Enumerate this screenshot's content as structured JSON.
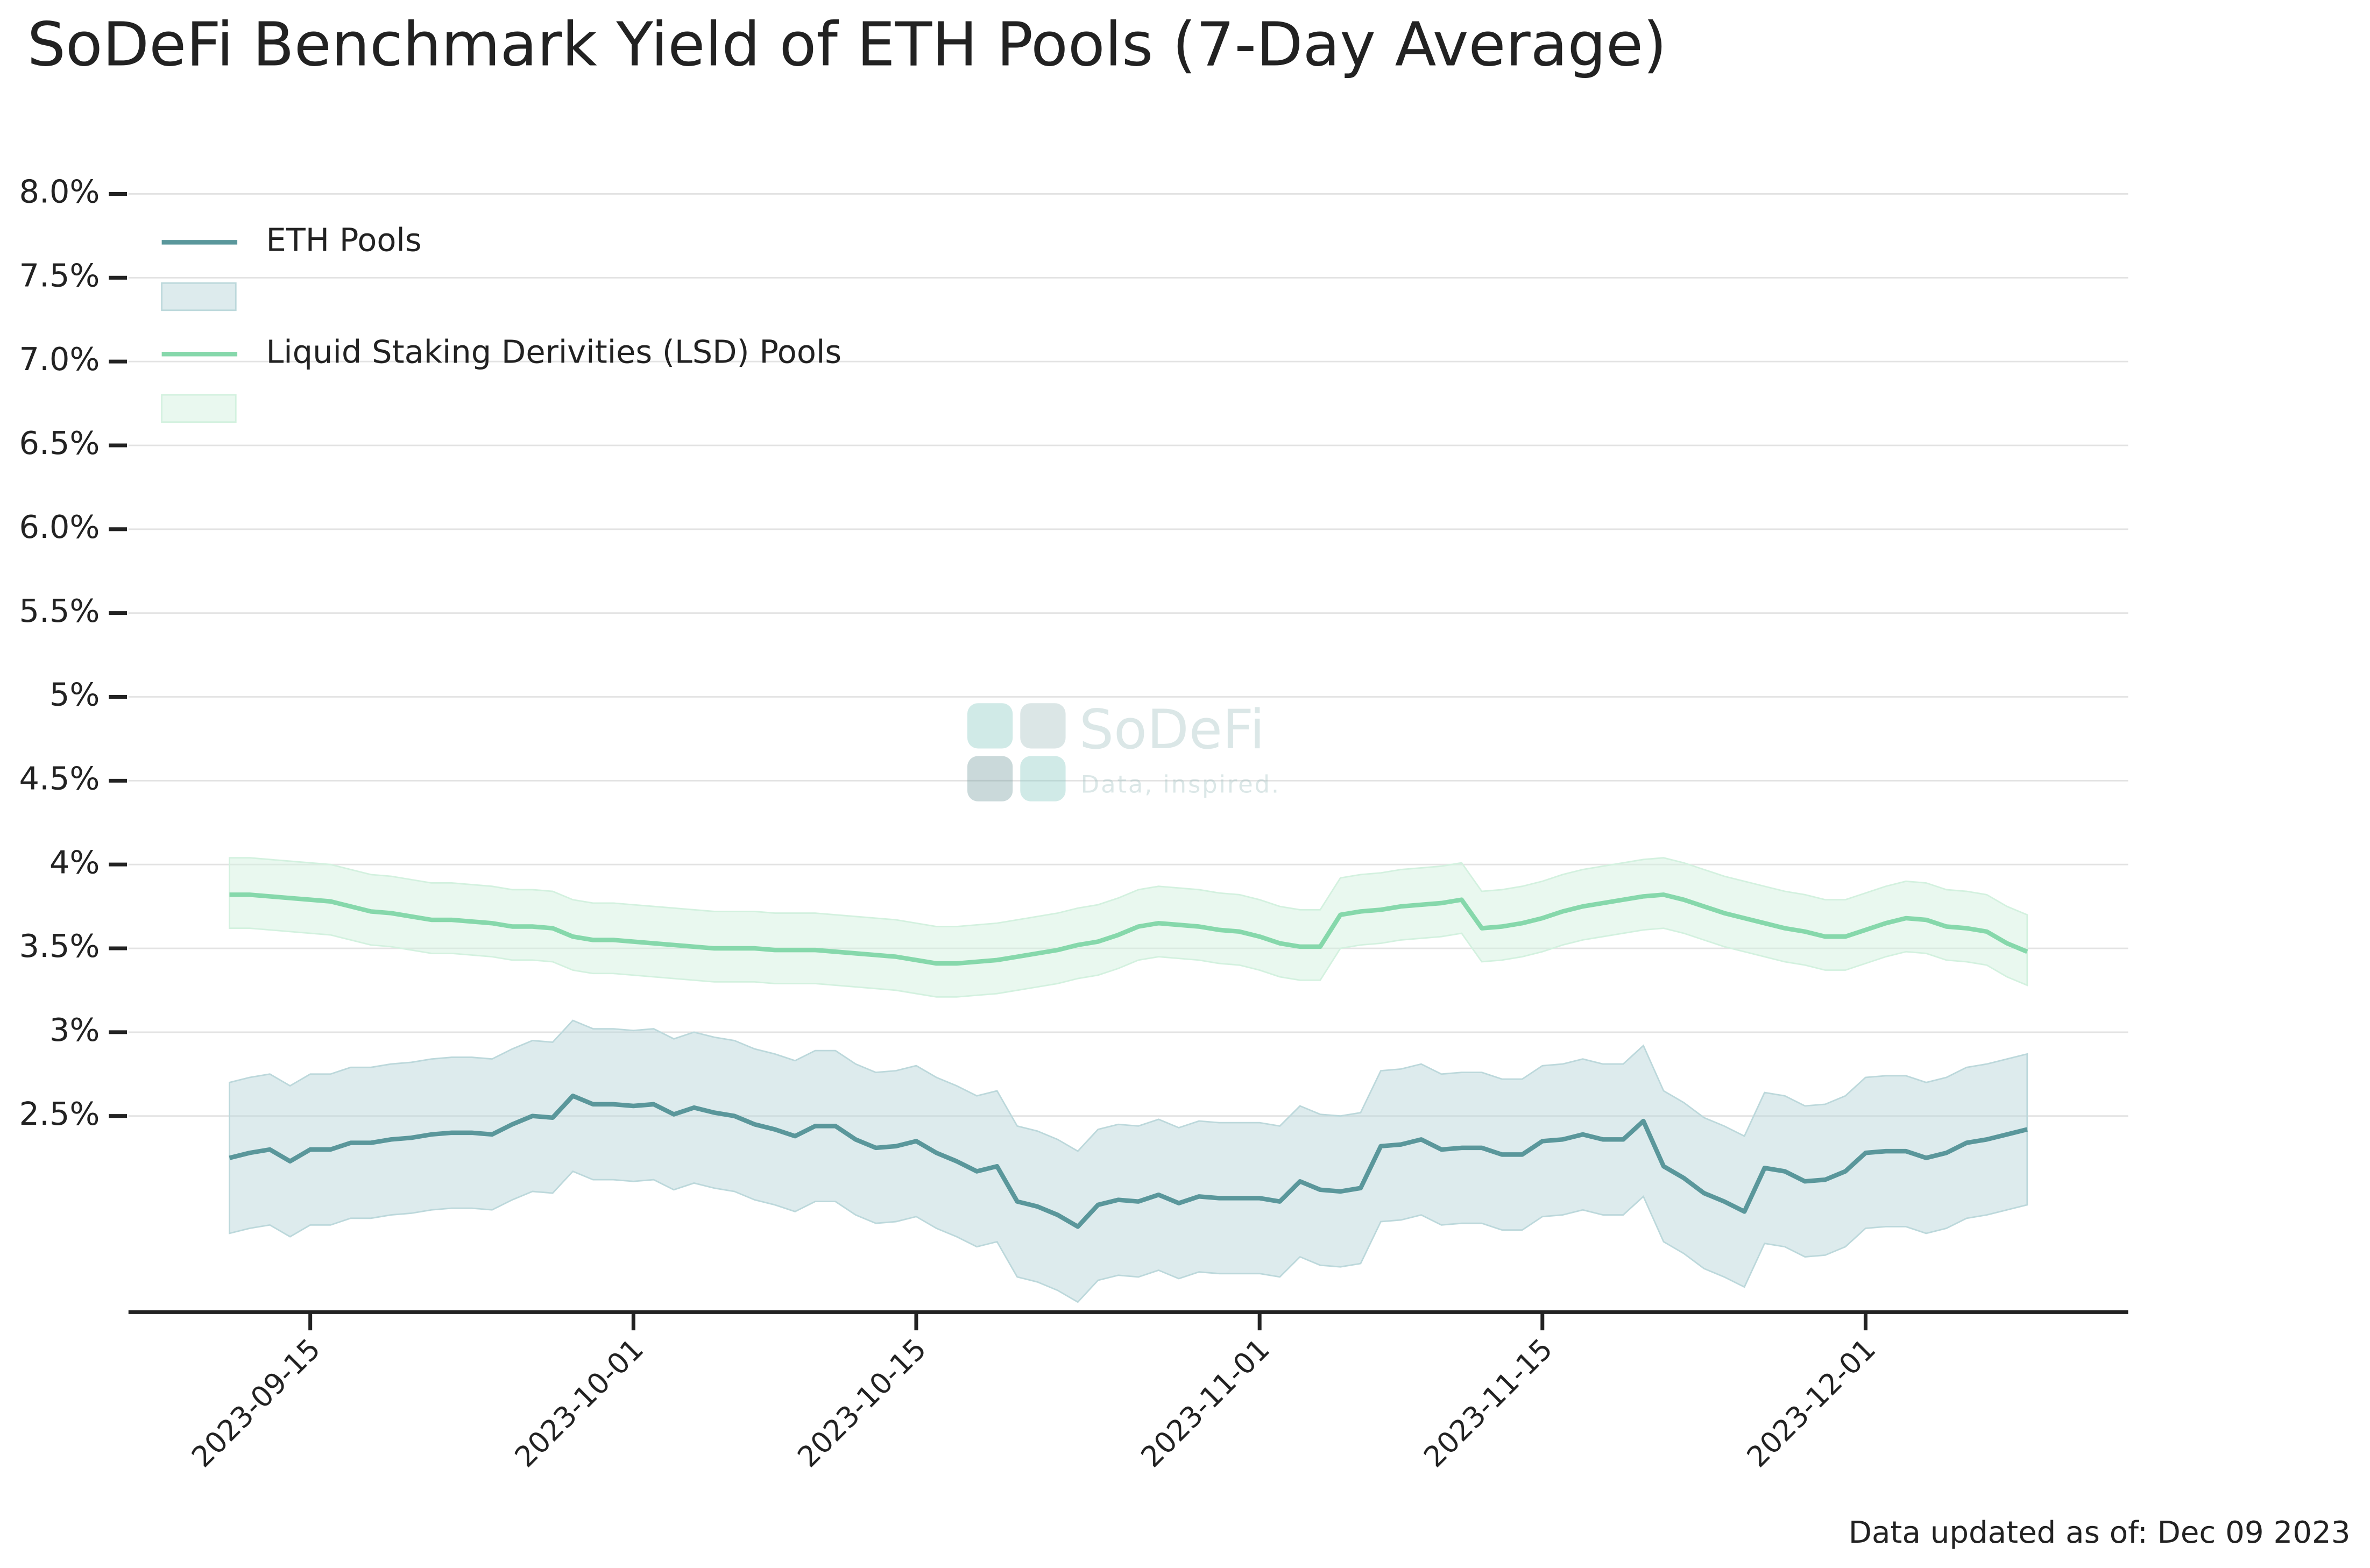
{
  "chart_data": {
    "type": "line",
    "title": "SoDeFi Benchmark Yield of ETH Pools (7-Day Average)",
    "footnote": "Data updated as of: Dec 09 2023",
    "watermark": {
      "name": "SoDeFi",
      "tagline": "Data, inspired."
    },
    "x": [
      "2023-09-11",
      "2023-09-12",
      "2023-09-13",
      "2023-09-14",
      "2023-09-15",
      "2023-09-16",
      "2023-09-17",
      "2023-09-18",
      "2023-09-19",
      "2023-09-20",
      "2023-09-21",
      "2023-09-22",
      "2023-09-23",
      "2023-09-24",
      "2023-09-25",
      "2023-09-26",
      "2023-09-27",
      "2023-09-28",
      "2023-09-29",
      "2023-09-30",
      "2023-10-01",
      "2023-10-02",
      "2023-10-03",
      "2023-10-04",
      "2023-10-05",
      "2023-10-06",
      "2023-10-07",
      "2023-10-08",
      "2023-10-09",
      "2023-10-10",
      "2023-10-11",
      "2023-10-12",
      "2023-10-13",
      "2023-10-14",
      "2023-10-15",
      "2023-10-16",
      "2023-10-17",
      "2023-10-18",
      "2023-10-19",
      "2023-10-20",
      "2023-10-21",
      "2023-10-22",
      "2023-10-23",
      "2023-10-24",
      "2023-10-25",
      "2023-10-26",
      "2023-10-27",
      "2023-10-28",
      "2023-10-29",
      "2023-10-30",
      "2023-10-31",
      "2023-11-01",
      "2023-11-02",
      "2023-11-03",
      "2023-11-04",
      "2023-11-05",
      "2023-11-06",
      "2023-11-07",
      "2023-11-08",
      "2023-11-09",
      "2023-11-10",
      "2023-11-11",
      "2023-11-12",
      "2023-11-13",
      "2023-11-14",
      "2023-11-15",
      "2023-11-16",
      "2023-11-17",
      "2023-11-18",
      "2023-11-19",
      "2023-11-20",
      "2023-11-21",
      "2023-11-22",
      "2023-11-23",
      "2023-11-24",
      "2023-11-25",
      "2023-11-26",
      "2023-11-27",
      "2023-11-28",
      "2023-11-29",
      "2023-11-30",
      "2023-12-01",
      "2023-12-02",
      "2023-12-03",
      "2023-12-04",
      "2023-12-05",
      "2023-12-06",
      "2023-12-07",
      "2023-12-08",
      "2023-12-09"
    ],
    "series": [
      {
        "name": "ETH Pools",
        "color": "#5a979b",
        "band_color": "#bcd8db",
        "values": [
          2.25,
          2.28,
          2.3,
          2.23,
          2.3,
          2.3,
          2.34,
          2.34,
          2.36,
          2.37,
          2.39,
          2.4,
          2.4,
          2.39,
          2.45,
          2.5,
          2.49,
          2.62,
          2.57,
          2.57,
          2.56,
          2.57,
          2.51,
          2.55,
          2.52,
          2.5,
          2.45,
          2.42,
          2.38,
          2.44,
          2.44,
          2.36,
          2.31,
          2.32,
          2.35,
          2.28,
          2.23,
          2.17,
          2.2,
          1.99,
          1.96,
          1.91,
          1.84,
          1.97,
          2.0,
          1.99,
          2.03,
          1.98,
          2.02,
          2.01,
          2.01,
          2.01,
          1.99,
          2.11,
          2.06,
          2.05,
          2.07,
          2.32,
          2.33,
          2.36,
          2.3,
          2.31,
          2.31,
          2.27,
          2.27,
          2.35,
          2.36,
          2.39,
          2.36,
          2.36,
          2.47,
          2.2,
          2.13,
          2.04,
          1.99,
          1.93,
          2.19,
          2.17,
          2.11,
          2.12,
          2.17,
          2.28,
          2.29,
          2.29,
          2.25,
          2.28,
          2.34,
          2.36,
          2.39,
          2.42
        ],
        "upper": [
          2.7,
          2.73,
          2.75,
          2.68,
          2.75,
          2.75,
          2.79,
          2.79,
          2.81,
          2.82,
          2.84,
          2.85,
          2.85,
          2.84,
          2.9,
          2.95,
          2.94,
          3.07,
          3.02,
          3.02,
          3.01,
          3.02,
          2.96,
          3.0,
          2.97,
          2.95,
          2.9,
          2.87,
          2.83,
          2.89,
          2.89,
          2.81,
          2.76,
          2.77,
          2.8,
          2.73,
          2.68,
          2.62,
          2.65,
          2.44,
          2.41,
          2.36,
          2.29,
          2.42,
          2.45,
          2.44,
          2.48,
          2.43,
          2.47,
          2.46,
          2.46,
          2.46,
          2.44,
          2.56,
          2.51,
          2.5,
          2.52,
          2.77,
          2.78,
          2.81,
          2.75,
          2.76,
          2.76,
          2.72,
          2.72,
          2.8,
          2.81,
          2.84,
          2.81,
          2.81,
          2.92,
          2.65,
          2.58,
          2.49,
          2.44,
          2.38,
          2.64,
          2.62,
          2.56,
          2.57,
          2.62,
          2.73,
          2.74,
          2.74,
          2.7,
          2.73,
          2.79,
          2.81,
          2.84,
          2.87
        ],
        "lower": [
          1.8,
          1.83,
          1.85,
          1.78,
          1.85,
          1.85,
          1.89,
          1.89,
          1.91,
          1.92,
          1.94,
          1.95,
          1.95,
          1.94,
          2.0,
          2.05,
          2.04,
          2.17,
          2.12,
          2.12,
          2.11,
          2.12,
          2.06,
          2.1,
          2.07,
          2.05,
          2.0,
          1.97,
          1.93,
          1.99,
          1.99,
          1.91,
          1.86,
          1.87,
          1.9,
          1.83,
          1.78,
          1.72,
          1.75,
          1.54,
          1.51,
          1.46,
          1.39,
          1.52,
          1.55,
          1.54,
          1.58,
          1.53,
          1.57,
          1.56,
          1.56,
          1.56,
          1.54,
          1.66,
          1.61,
          1.6,
          1.62,
          1.87,
          1.88,
          1.91,
          1.85,
          1.86,
          1.86,
          1.82,
          1.82,
          1.9,
          1.91,
          1.94,
          1.91,
          1.91,
          2.02,
          1.75,
          1.68,
          1.59,
          1.54,
          1.48,
          1.74,
          1.72,
          1.66,
          1.67,
          1.72,
          1.83,
          1.84,
          1.84,
          1.8,
          1.83,
          1.89,
          1.91,
          1.94,
          1.97
        ]
      },
      {
        "name": "Liquid Staking Derivities (LSD) Pools",
        "color": "#86d8ab",
        "band_color": "#d3f1df",
        "values": [
          3.82,
          3.82,
          3.81,
          3.8,
          3.79,
          3.78,
          3.75,
          3.72,
          3.71,
          3.69,
          3.67,
          3.67,
          3.66,
          3.65,
          3.63,
          3.63,
          3.62,
          3.57,
          3.55,
          3.55,
          3.54,
          3.53,
          3.52,
          3.51,
          3.5,
          3.5,
          3.5,
          3.49,
          3.49,
          3.49,
          3.48,
          3.47,
          3.46,
          3.45,
          3.43,
          3.41,
          3.41,
          3.42,
          3.43,
          3.45,
          3.47,
          3.49,
          3.52,
          3.54,
          3.58,
          3.63,
          3.65,
          3.64,
          3.63,
          3.61,
          3.6,
          3.57,
          3.53,
          3.51,
          3.51,
          3.7,
          3.72,
          3.73,
          3.75,
          3.76,
          3.77,
          3.79,
          3.62,
          3.63,
          3.65,
          3.68,
          3.72,
          3.75,
          3.77,
          3.79,
          3.81,
          3.82,
          3.79,
          3.75,
          3.71,
          3.68,
          3.65,
          3.62,
          3.6,
          3.57,
          3.57,
          3.61,
          3.65,
          3.68,
          3.67,
          3.63,
          3.62,
          3.6,
          3.53,
          3.48
        ],
        "upper": [
          4.04,
          4.04,
          4.03,
          4.02,
          4.01,
          4.0,
          3.97,
          3.94,
          3.93,
          3.91,
          3.89,
          3.89,
          3.88,
          3.87,
          3.85,
          3.85,
          3.84,
          3.79,
          3.77,
          3.77,
          3.76,
          3.75,
          3.74,
          3.73,
          3.72,
          3.72,
          3.72,
          3.71,
          3.71,
          3.71,
          3.7,
          3.69,
          3.68,
          3.67,
          3.65,
          3.63,
          3.63,
          3.64,
          3.65,
          3.67,
          3.69,
          3.71,
          3.74,
          3.76,
          3.8,
          3.85,
          3.87,
          3.86,
          3.85,
          3.83,
          3.82,
          3.79,
          3.75,
          3.73,
          3.73,
          3.92,
          3.94,
          3.95,
          3.97,
          3.98,
          3.99,
          4.01,
          3.84,
          3.85,
          3.87,
          3.9,
          3.94,
          3.97,
          3.99,
          4.01,
          4.03,
          4.04,
          4.01,
          3.97,
          3.93,
          3.9,
          3.87,
          3.84,
          3.82,
          3.79,
          3.79,
          3.83,
          3.87,
          3.9,
          3.89,
          3.85,
          3.84,
          3.82,
          3.75,
          3.7
        ],
        "lower": [
          3.62,
          3.62,
          3.61,
          3.6,
          3.59,
          3.58,
          3.55,
          3.52,
          3.51,
          3.49,
          3.47,
          3.47,
          3.46,
          3.45,
          3.43,
          3.43,
          3.42,
          3.37,
          3.35,
          3.35,
          3.34,
          3.33,
          3.32,
          3.31,
          3.3,
          3.3,
          3.3,
          3.29,
          3.29,
          3.29,
          3.28,
          3.27,
          3.26,
          3.25,
          3.23,
          3.21,
          3.21,
          3.22,
          3.23,
          3.25,
          3.27,
          3.29,
          3.32,
          3.34,
          3.38,
          3.43,
          3.45,
          3.44,
          3.43,
          3.41,
          3.4,
          3.37,
          3.33,
          3.31,
          3.31,
          3.5,
          3.52,
          3.53,
          3.55,
          3.56,
          3.57,
          3.59,
          3.42,
          3.43,
          3.45,
          3.48,
          3.52,
          3.55,
          3.57,
          3.59,
          3.61,
          3.62,
          3.59,
          3.55,
          3.51,
          3.48,
          3.45,
          3.42,
          3.4,
          3.37,
          3.37,
          3.41,
          3.45,
          3.48,
          3.47,
          3.43,
          3.42,
          3.4,
          3.33,
          3.28
        ]
      }
    ],
    "xlim": [
      "2023-09-06",
      "2023-12-14"
    ],
    "xticks": [
      "2023-09-15",
      "2023-10-01",
      "2023-10-15",
      "2023-11-01",
      "2023-11-15",
      "2023-12-01"
    ],
    "ylim": [
      1.33,
      8.0
    ],
    "yticks": [
      {
        "value": 2.5,
        "label": "2.5%"
      },
      {
        "value": 3,
        "label": "3%"
      },
      {
        "value": 3.5,
        "label": "3.5%"
      },
      {
        "value": 4,
        "label": "4%"
      },
      {
        "value": 4.5,
        "label": "4.5%"
      },
      {
        "value": 5,
        "label": "5%"
      },
      {
        "value": 5.5,
        "label": "5.5%"
      },
      {
        "value": 6,
        "label": "6.0%"
      },
      {
        "value": 6.5,
        "label": "6.5%"
      },
      {
        "value": 7,
        "label": "7.0%"
      },
      {
        "value": 7.5,
        "label": "7.5%"
      },
      {
        "value": 8,
        "label": "8.0%"
      }
    ],
    "grid": true,
    "legend": "upper left"
  }
}
